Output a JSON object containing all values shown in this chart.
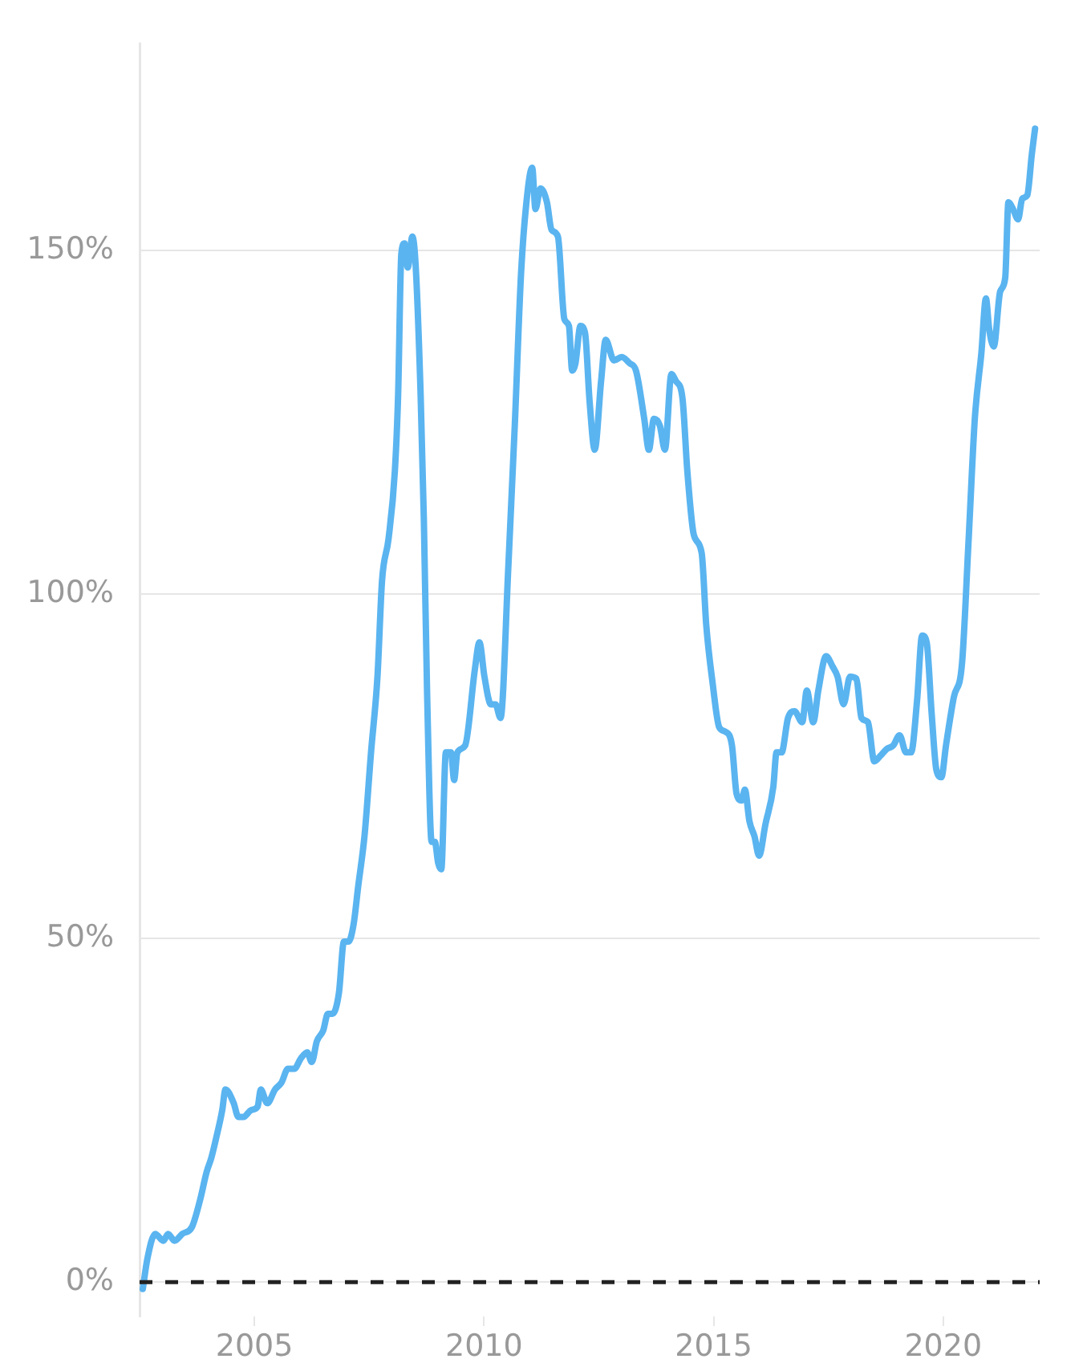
{
  "chart_data": {
    "type": "line",
    "x": [
      2002.57,
      2002.67,
      2002.84,
      2003.02,
      2003.12,
      2003.26,
      2003.43,
      2003.64,
      2003.82,
      2003.96,
      2004.06,
      2004.17,
      2004.3,
      2004.37,
      2004.55,
      2004.65,
      2004.76,
      2004.93,
      2005.07,
      2005.14,
      2005.28,
      2005.45,
      2005.59,
      2005.73,
      2005.87,
      2006.01,
      2006.15,
      2006.25,
      2006.36,
      2006.5,
      2006.6,
      2006.7,
      2006.84,
      2006.95,
      2007.05,
      2007.16,
      2007.26,
      2007.4,
      2007.54,
      2007.68,
      2007.78,
      2007.92,
      2008.06,
      2008.13,
      2008.2,
      2008.27,
      2008.34,
      2008.44,
      2008.51,
      2008.62,
      2008.69,
      2008.76,
      2008.86,
      2008.93,
      2009.0,
      2009.07,
      2009.17,
      2009.28,
      2009.35,
      2009.42,
      2009.59,
      2009.8,
      2009.9,
      2010.01,
      2010.15,
      2010.25,
      2010.36,
      2010.53,
      2010.67,
      2010.81,
      2010.95,
      2011.05,
      2011.12,
      2011.23,
      2011.37,
      2011.47,
      2011.61,
      2011.75,
      2011.85,
      2011.92,
      2011.99,
      2012.1,
      2012.2,
      2012.3,
      2012.41,
      2012.55,
      2012.65,
      2012.83,
      2013.0,
      2013.17,
      2013.31,
      2013.49,
      2013.59,
      2013.7,
      2013.83,
      2013.94,
      2014.08,
      2014.18,
      2014.32,
      2014.43,
      2014.57,
      2014.74,
      2014.84,
      2014.98,
      2015.12,
      2015.26,
      2015.4,
      2015.5,
      2015.61,
      2015.68,
      2015.78,
      2015.89,
      2015.99,
      2016.13,
      2016.3,
      2016.37,
      2016.48,
      2016.62,
      2016.76,
      2016.93,
      2017.03,
      2017.17,
      2017.28,
      2017.45,
      2017.59,
      2017.7,
      2017.83,
      2017.97,
      2018.11,
      2018.22,
      2018.36,
      2018.5,
      2018.63,
      2018.77,
      2018.91,
      2019.05,
      2019.19,
      2019.3,
      2019.43,
      2019.54,
      2019.64,
      2019.75,
      2019.85,
      2019.96,
      2020.06,
      2020.23,
      2020.41,
      2020.55,
      2020.69,
      2020.83,
      2020.93,
      2021.0,
      2021.1,
      2021.24,
      2021.35,
      2021.42,
      2021.52,
      2021.63,
      2021.72,
      2021.83,
      2021.93,
      2022.0
    ],
    "series": [
      {
        "color": "#5ab4f0",
        "values": [
          -1,
          3.4,
          7,
          6,
          7,
          6,
          7,
          8,
          12,
          16,
          18,
          21,
          25,
          28,
          26,
          24,
          24,
          25,
          25.5,
          28,
          26,
          28,
          29,
          31,
          31,
          32.5,
          33.4,
          32,
          35,
          36.6,
          39,
          39,
          42,
          49.5,
          49.5,
          52,
          57.5,
          65,
          77,
          88,
          102,
          108,
          118,
          129,
          149.5,
          151,
          147.5,
          152,
          148,
          129,
          111,
          86,
          64,
          64,
          61,
          60,
          77,
          77,
          73,
          77,
          78,
          89,
          93,
          88,
          84,
          84,
          82,
          104,
          124.5,
          147,
          158.6,
          162,
          156,
          159,
          157,
          153,
          152,
          140,
          139,
          132.5,
          133.5,
          139,
          138,
          128,
          121,
          131,
          137,
          134,
          134.5,
          133.6,
          132.5,
          125.5,
          121,
          125.5,
          124.5,
          121,
          132,
          131,
          128.6,
          117.7,
          108.6,
          106,
          95.5,
          87,
          80.7,
          80,
          78,
          71,
          70,
          71.6,
          67,
          64.8,
          62,
          66.6,
          72,
          77,
          77,
          82,
          83,
          81.4,
          86,
          81.4,
          86,
          91,
          89.5,
          88,
          84,
          88,
          87.7,
          82,
          81.4,
          75.7,
          76.5,
          77.5,
          78,
          79.5,
          77,
          77,
          84.5,
          94,
          93,
          82.5,
          74.5,
          73.4,
          78,
          85,
          90,
          107.5,
          125.7,
          135,
          143,
          138.6,
          136,
          144,
          146,
          157,
          156,
          154.5,
          157.5,
          158,
          164,
          167.7
        ]
      }
    ],
    "xlim": [
      2002.5,
      2022.1
    ],
    "xticks": [
      2005,
      2010,
      2015,
      2020
    ],
    "ylim": [
      -5,
      180
    ],
    "yticks": [
      {
        "value": 0,
        "label": "0%"
      },
      {
        "value": 50,
        "label": "50%"
      },
      {
        "value": 100,
        "label": "100%"
      },
      {
        "value": 150,
        "label": "150%"
      }
    ],
    "grid": "y",
    "marker": "none",
    "line_style": "solid",
    "legend": false,
    "ref_lines": [
      {
        "axis": "y",
        "value": 0,
        "color": "#222222",
        "line_style": "dashed"
      }
    ]
  }
}
